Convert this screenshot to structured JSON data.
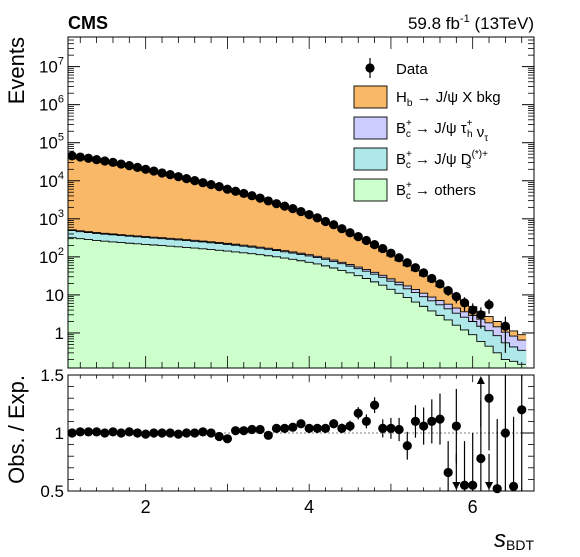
{
  "experiment": "CMS",
  "lumi": {
    "value": "59.8 fb",
    "sup": "-1",
    "energy": " (13TeV)"
  },
  "chart_data": {
    "type": "bar",
    "title": "",
    "xlabel": {
      "main": "s",
      "sub": "BDT"
    },
    "ylabel_top": "Events",
    "ylabel_bottom": "Obs. / Exp.",
    "xlim": [
      1.05,
      6.75
    ],
    "ylim_top": [
      0.12,
      60000000
    ],
    "yscale_top": "log",
    "ylim_bottom": [
      0.5,
      1.5
    ],
    "grid": false,
    "legend_placement": "top-right",
    "x_ticks": [
      "2",
      "4",
      "6"
    ],
    "x_tick_values": [
      2,
      4,
      6
    ],
    "y_ticks_top": [
      {
        "value": 1,
        "base": "1",
        "exp": ""
      },
      {
        "value": 10,
        "base": "10",
        "exp": ""
      },
      {
        "value": 100,
        "base": "10",
        "exp": "2"
      },
      {
        "value": 1000,
        "base": "10",
        "exp": "3"
      },
      {
        "value": 10000,
        "base": "10",
        "exp": "4"
      },
      {
        "value": 100000,
        "base": "10",
        "exp": "5"
      },
      {
        "value": 1000000,
        "base": "10",
        "exp": "6"
      },
      {
        "value": 10000000,
        "base": "10",
        "exp": "7"
      }
    ],
    "y_ticks_bottom": [
      "0.5",
      "1",
      "1.5"
    ],
    "y_tick_values_bottom": [
      0.5,
      1,
      1.5
    ],
    "bin_edges": [
      1.05,
      1.15,
      1.25,
      1.35,
      1.45,
      1.55,
      1.65,
      1.75,
      1.85,
      1.95,
      2.05,
      2.15,
      2.25,
      2.35,
      2.45,
      2.55,
      2.65,
      2.75,
      2.85,
      2.95,
      3.05,
      3.15,
      3.25,
      3.35,
      3.45,
      3.55,
      3.65,
      3.75,
      3.85,
      3.95,
      4.05,
      4.15,
      4.25,
      4.35,
      4.45,
      4.55,
      4.65,
      4.75,
      4.85,
      4.95,
      5.05,
      5.15,
      5.25,
      5.35,
      5.45,
      5.55,
      5.65,
      5.75,
      5.85,
      5.95,
      6.05,
      6.15,
      6.25,
      6.35,
      6.45,
      6.55,
      6.65
    ],
    "series": [
      {
        "name": "B_c^+ → others",
        "label": {
          "pre": "B",
          "sub": "c",
          "sup": "+",
          "post": " → others",
          "sub2": "",
          "sup2": ""
        },
        "color": "#ccffcc",
        "values": [
          320,
          300,
          285,
          270,
          258,
          247,
          237,
          228,
          220,
          212,
          205,
          198,
          191,
          184,
          177,
          170,
          163,
          156,
          149,
          142,
          135,
          128,
          121,
          114,
          107,
          100,
          93,
          86,
          79,
          72,
          65,
          58,
          51,
          44,
          38,
          32,
          27,
          22,
          18,
          14,
          11,
          8.5,
          6.5,
          5,
          3.8,
          2.9,
          2.2,
          1.6,
          1.2,
          0.9,
          0.6,
          0.45,
          0.3,
          0.2,
          0.18,
          0.15
        ]
      },
      {
        "name": "B_c^+ → J/ψ D_s^(*)+",
        "label": {
          "pre": "B",
          "sub": "c",
          "sup": "+",
          "post": " → J/ψ D",
          "sub2": "s",
          "sup2": "(*)+"
        },
        "color": "#aee8e8",
        "values": [
          170,
          160,
          152,
          144,
          138,
          132,
          126,
          121,
          116,
          111,
          107,
          103,
          99,
          95,
          91,
          87,
          83,
          79,
          75,
          71,
          67,
          63,
          59,
          55,
          51,
          47,
          43,
          40,
          37,
          34,
          31,
          28,
          25,
          22,
          19,
          17,
          15,
          13,
          11,
          9,
          7.5,
          6,
          5,
          4,
          3.2,
          2.6,
          2.1,
          1.7,
          1.4,
          1.1,
          0.9,
          0.7,
          0.55,
          0.35,
          0.25,
          0.2
        ]
      },
      {
        "name": "B_c^+ → J/ψ τ_h^+ ν_τ",
        "label": {
          "pre": "B",
          "sub": "c",
          "sup": "+",
          "post": " → J/ψ τ",
          "sub2": "h",
          "sup2": "+",
          "post2": " ν",
          "sub3": "τ"
        },
        "color": "#ccccff",
        "values": [
          25,
          24,
          23,
          22,
          21,
          20,
          19.5,
          19,
          18.5,
          18,
          17.5,
          17,
          16.5,
          16,
          15.5,
          15,
          14.5,
          14,
          13.5,
          13,
          12.5,
          12,
          11.5,
          11,
          10.5,
          10,
          9.5,
          9,
          8.5,
          8,
          7.5,
          7,
          6.5,
          6,
          5.5,
          5,
          4.6,
          4.2,
          3.8,
          3.4,
          3,
          2.7,
          2.4,
          2.1,
          1.8,
          1.6,
          1.4,
          1.2,
          1.0,
          0.9,
          0.8,
          0.7,
          0.6,
          0.5,
          0.4,
          0.3
        ]
      },
      {
        "name": "H_b → J/ψ X bkg",
        "label": {
          "pre": "H",
          "sub": "b",
          "sup": "",
          "post": " → J/ψ X bkg",
          "sub2": "",
          "sup2": ""
        },
        "color": "#f8b868",
        "values": [
          39000,
          37000,
          34500,
          32000,
          29500,
          27000,
          24500,
          22000,
          19800,
          17800,
          16000,
          14400,
          12900,
          11500,
          10200,
          9000,
          7900,
          7000,
          6200,
          5400,
          4700,
          4100,
          3550,
          3050,
          2600,
          2200,
          1850,
          1550,
          1290,
          1060,
          860,
          690,
          550,
          430,
          335,
          255,
          195,
          146,
          108,
          79,
          57,
          41,
          29,
          20.5,
          14,
          9.5,
          6.5,
          4.4,
          3.0,
          2.0,
          1.3,
          0.85,
          0.55,
          0.35,
          0.3,
          0.25
        ]
      }
    ],
    "data": {
      "name": "Data",
      "values": [
        45000,
        42000,
        39000,
        36000,
        33000,
        30500,
        27500,
        25000,
        22500,
        20000,
        18000,
        16000,
        14500,
        12800,
        11400,
        10100,
        8900,
        7900,
        7000,
        6000,
        5300,
        4650,
        4050,
        3500,
        2950,
        2500,
        2150,
        1850,
        1550,
        1290,
        1060,
        850,
        700,
        550,
        430,
        340,
        270,
        210,
        165,
        125,
        95,
        70,
        52,
        38,
        27,
        19.5,
        13,
        9,
        6.2,
        4.0,
        3.0,
        5.5,
        0.12,
        1.5,
        0.12,
        0.12
      ],
      "errors": [
        210,
        205,
        198,
        190,
        182,
        175,
        166,
        158,
        150,
        141,
        134,
        126,
        120,
        113,
        107,
        100,
        94,
        89,
        84,
        77,
        73,
        68,
        64,
        59,
        54,
        50,
        46,
        43,
        39,
        36,
        33,
        29,
        26,
        23,
        21,
        18,
        16,
        14.5,
        13,
        11,
        9.7,
        8.4,
        7.2,
        6.2,
        5.2,
        4.4,
        3.6,
        3.0,
        2.5,
        2.0,
        1.7,
        2.3,
        0,
        1.2,
        0,
        0
      ]
    },
    "ratio": {
      "values": [
        1.0,
        1.01,
        1.01,
        1.01,
        1.0,
        1.01,
        1.0,
        1.01,
        1.0,
        0.99,
        1.0,
        1.0,
        1.0,
        0.99,
        1.0,
        1.0,
        1.01,
        1.0,
        0.97,
        0.95,
        1.02,
        1.02,
        1.03,
        1.03,
        0.98,
        1.04,
        1.04,
        1.05,
        1.08,
        1.04,
        1.04,
        1.04,
        1.08,
        1.04,
        1.06,
        1.17,
        1.1,
        1.24,
        1.04,
        1.04,
        1.03,
        0.89,
        1.1,
        1.06,
        1.1,
        1.12,
        0.66,
        1.06,
        0.55,
        0.55,
        0.78,
        1.3,
        0.52,
        1.0,
        0.54,
        1.2
      ],
      "errors": [
        0.005,
        0.005,
        0.006,
        0.006,
        0.006,
        0.006,
        0.006,
        0.007,
        0.007,
        0.007,
        0.008,
        0.008,
        0.009,
        0.009,
        0.01,
        0.01,
        0.011,
        0.011,
        0.012,
        0.013,
        0.014,
        0.015,
        0.016,
        0.017,
        0.018,
        0.02,
        0.022,
        0.024,
        0.026,
        0.028,
        0.031,
        0.034,
        0.038,
        0.042,
        0.047,
        0.053,
        0.06,
        0.068,
        0.078,
        0.09,
        0.1,
        0.12,
        0.14,
        0.16,
        0.19,
        0.22,
        0.27,
        0.32,
        0.38,
        0.45,
        0.5,
        0.45,
        0.6,
        0.7,
        0.6,
        0.7
      ],
      "arrows_down": [
        47,
        51
      ],
      "arrows_up": [
        50
      ]
    }
  }
}
